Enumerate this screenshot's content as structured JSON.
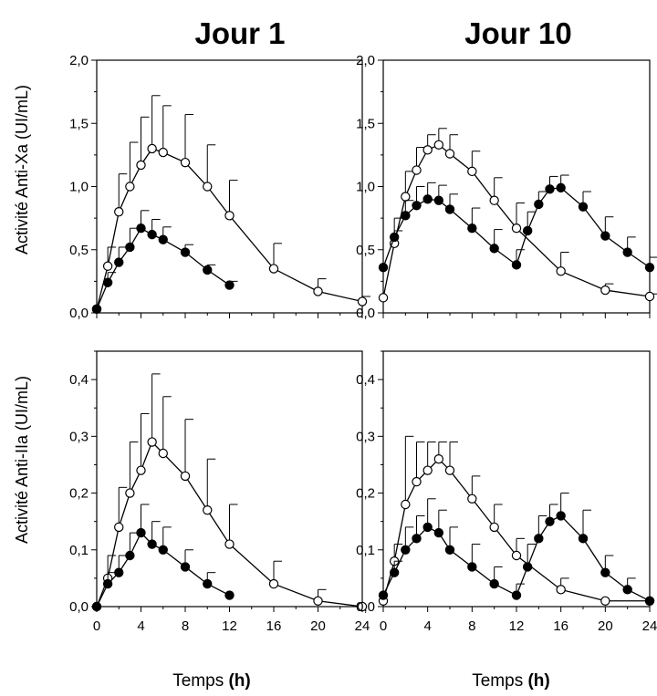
{
  "figure": {
    "col_titles": [
      "Jour 1",
      "Jour 10"
    ],
    "row_ylabels": [
      "Activité Anti-Xa (UI/mL)",
      "Activité Anti-IIa (UI/mL)"
    ],
    "xlabel_text": "Temps",
    "xlabel_unit": "(h)",
    "colors": {
      "axes": "#000000",
      "open_fill": "#ffffff",
      "filled": "#000000"
    }
  },
  "chart_data": [
    {
      "type": "line",
      "title": "Jour 1",
      "ylabel": "Activité Anti-Xa (UI/mL)",
      "xlabel": "Temps (h)",
      "xlim": [
        0,
        24
      ],
      "ylim": [
        0,
        2.0
      ],
      "xticks": [
        0,
        4,
        8,
        12,
        16,
        20,
        24
      ],
      "yticks": [
        0,
        0.5,
        1.0,
        1.5,
        2.0
      ],
      "ytick_labels": [
        "0,0",
        "0,5",
        "1,0",
        "1,5",
        "2,0"
      ],
      "series": [
        {
          "marker": "open",
          "x": [
            0,
            1,
            2,
            3,
            4,
            5,
            6,
            8,
            10,
            12,
            16,
            20,
            24
          ],
          "y": [
            0.03,
            0.37,
            0.8,
            1.0,
            1.17,
            1.3,
            1.27,
            1.19,
            1.0,
            0.77,
            0.35,
            0.17,
            0.09
          ],
          "err": [
            0,
            0.15,
            0.3,
            0.35,
            0.38,
            0.42,
            0.37,
            0.38,
            0.33,
            0.28,
            0.2,
            0.1,
            0.04
          ]
        },
        {
          "marker": "filled",
          "x": [
            0,
            1,
            2,
            3,
            4,
            5,
            6,
            8,
            10,
            12
          ],
          "y": [
            0.03,
            0.24,
            0.4,
            0.52,
            0.67,
            0.62,
            0.58,
            0.48,
            0.34,
            0.22
          ],
          "err": [
            0,
            0.08,
            0.12,
            0.15,
            0.14,
            0.12,
            0.1,
            0.06,
            0.04,
            0.03
          ]
        }
      ]
    },
    {
      "type": "line",
      "title": "Jour 10",
      "ylabel": "Activité Anti-Xa (UI/mL)",
      "xlabel": "Temps (h)",
      "xlim": [
        0,
        24
      ],
      "ylim": [
        0,
        2.0
      ],
      "xticks": [
        0,
        4,
        8,
        12,
        16,
        20,
        24
      ],
      "yticks": [
        0,
        0.5,
        1.0,
        1.5,
        2.0
      ],
      "ytick_labels": [
        "0,0",
        "0,5",
        "1,0",
        "1,5",
        "2,0"
      ],
      "series": [
        {
          "marker": "open",
          "x": [
            0,
            1,
            2,
            3,
            4,
            5,
            6,
            8,
            10,
            12,
            16,
            20,
            24
          ],
          "y": [
            0.12,
            0.55,
            0.92,
            1.13,
            1.29,
            1.33,
            1.26,
            1.12,
            0.89,
            0.67,
            0.33,
            0.18,
            0.13
          ],
          "err": [
            0,
            0.1,
            0.2,
            0.18,
            0.12,
            0.13,
            0.15,
            0.16,
            0.18,
            0.2,
            0.15,
            0.05,
            0.02
          ]
        },
        {
          "marker": "filled",
          "x": [
            0,
            1,
            2,
            3,
            4,
            5,
            6,
            8,
            10,
            12,
            13,
            14,
            15,
            16,
            18,
            20,
            22,
            24
          ],
          "y": [
            0.36,
            0.6,
            0.77,
            0.85,
            0.9,
            0.89,
            0.82,
            0.67,
            0.51,
            0.38,
            0.65,
            0.86,
            0.98,
            0.99,
            0.84,
            0.61,
            0.48,
            0.36
          ],
          "err": [
            0,
            0.15,
            0.12,
            0.15,
            0.13,
            0.12,
            0.12,
            0.16,
            0.15,
            0.12,
            0.15,
            0.1,
            0.1,
            0.1,
            0.12,
            0.15,
            0.12,
            0.08
          ]
        }
      ]
    },
    {
      "type": "line",
      "title": "Jour 1",
      "ylabel": "Activité Anti-IIa (UI/mL)",
      "xlabel": "Temps (h)",
      "xlim": [
        0,
        24
      ],
      "ylim": [
        0,
        0.45
      ],
      "xticks": [
        0,
        4,
        8,
        12,
        16,
        20,
        24
      ],
      "yticks": [
        0,
        0.1,
        0.2,
        0.3,
        0.4
      ],
      "ytick_labels": [
        "0,0",
        "0,1",
        "0,2",
        "0,3",
        "0,4"
      ],
      "series": [
        {
          "marker": "open",
          "x": [
            0,
            1,
            2,
            3,
            4,
            5,
            6,
            8,
            10,
            12,
            16,
            20,
            24
          ],
          "y": [
            0.0,
            0.05,
            0.14,
            0.2,
            0.24,
            0.29,
            0.27,
            0.23,
            0.17,
            0.11,
            0.04,
            0.01,
            0.0
          ],
          "err": [
            0,
            0.04,
            0.07,
            0.09,
            0.1,
            0.12,
            0.1,
            0.1,
            0.09,
            0.07,
            0.04,
            0.02,
            0.0
          ]
        },
        {
          "marker": "filled",
          "x": [
            0,
            1,
            2,
            3,
            4,
            5,
            6,
            8,
            10,
            12
          ],
          "y": [
            0.0,
            0.04,
            0.06,
            0.09,
            0.13,
            0.11,
            0.1,
            0.07,
            0.04,
            0.02
          ],
          "err": [
            0,
            0.02,
            0.03,
            0.04,
            0.05,
            0.04,
            0.04,
            0.03,
            0.02,
            0.0
          ]
        }
      ]
    },
    {
      "type": "line",
      "title": "Jour 10",
      "ylabel": "Activité Anti-IIa (UI/mL)",
      "xlabel": "Temps (h)",
      "xlim": [
        0,
        24
      ],
      "ylim": [
        0,
        0.45
      ],
      "xticks": [
        0,
        4,
        8,
        12,
        16,
        20,
        24
      ],
      "yticks": [
        0,
        0.1,
        0.2,
        0.3,
        0.4
      ],
      "ytick_labels": [
        "0,0",
        "0,1",
        "0,2",
        "0,3",
        "0,4"
      ],
      "series": [
        {
          "marker": "open",
          "x": [
            0,
            1,
            2,
            3,
            4,
            5,
            6,
            8,
            10,
            12,
            16,
            20,
            24
          ],
          "y": [
            0.01,
            0.08,
            0.18,
            0.22,
            0.24,
            0.26,
            0.24,
            0.19,
            0.14,
            0.09,
            0.03,
            0.01,
            0.01
          ],
          "err": [
            0,
            0.03,
            0.12,
            0.07,
            0.05,
            0.03,
            0.05,
            0.04,
            0.04,
            0.03,
            0.02,
            0.0,
            0.0
          ]
        },
        {
          "marker": "filled",
          "x": [
            0,
            1,
            2,
            3,
            4,
            5,
            6,
            8,
            10,
            12,
            13,
            14,
            15,
            16,
            18,
            20,
            22,
            24
          ],
          "y": [
            0.02,
            0.06,
            0.1,
            0.12,
            0.14,
            0.13,
            0.1,
            0.07,
            0.04,
            0.02,
            0.07,
            0.12,
            0.15,
            0.16,
            0.12,
            0.06,
            0.03,
            0.01
          ],
          "err": [
            0,
            0.02,
            0.04,
            0.04,
            0.05,
            0.04,
            0.04,
            0.04,
            0.03,
            0.02,
            0.04,
            0.04,
            0.03,
            0.04,
            0.05,
            0.03,
            0.02,
            0.0
          ]
        }
      ]
    }
  ]
}
